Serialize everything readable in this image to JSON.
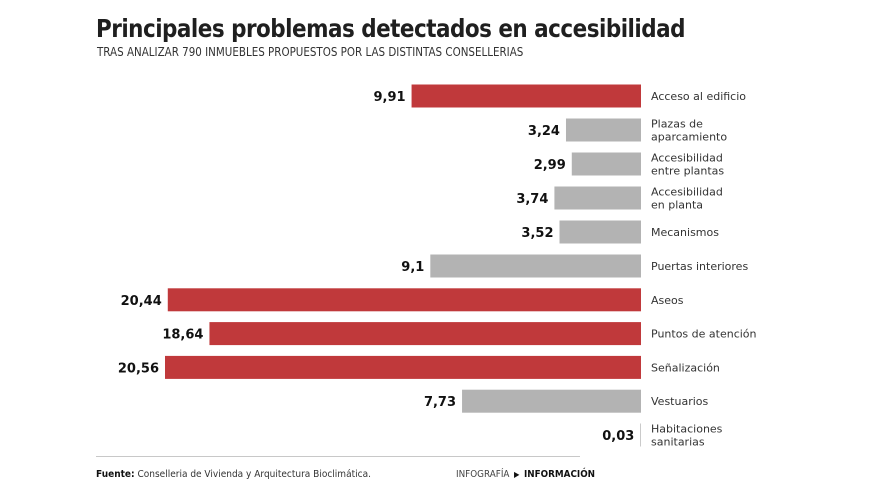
{
  "chart_data": {
    "type": "bar",
    "orientation": "horizontal",
    "title": "Principales problemas detectados en accesibilidad",
    "subtitle": "TRAS ANALIZAR 790 INMUEBLES PROPUESTOS POR LAS DISTINTAS CONSELLERIAS",
    "xlabel": "",
    "ylabel": "",
    "xlim": [
      0,
      20.56
    ],
    "grid": false,
    "legend": "none",
    "highlight_color": "#c0393b",
    "base_color": "#b3b3b3",
    "categories": [
      [
        "Acceso al edificio"
      ],
      [
        "Plazas de",
        "aparcamiento"
      ],
      [
        "Accesibilidad",
        "entre plantas"
      ],
      [
        "Accesibilidad",
        "en planta"
      ],
      [
        "Mecanismos"
      ],
      [
        "Puertas interiores"
      ],
      [
        "Aseos"
      ],
      [
        "Puntos de atención"
      ],
      [
        "Señalización"
      ],
      [
        "Vestuarios"
      ],
      [
        "Habitaciones",
        "sanitarias"
      ]
    ],
    "values": [
      9.91,
      3.24,
      2.99,
      3.74,
      3.52,
      9.1,
      20.44,
      18.64,
      20.56,
      7.73,
      0.03
    ],
    "value_labels": [
      "9,91",
      "3,24",
      "2,99",
      "3,74",
      "3,52",
      "9,1",
      "20,44",
      "18,64",
      "20,56",
      "7,73",
      "0,03"
    ],
    "highlighted": [
      true,
      false,
      false,
      false,
      false,
      false,
      true,
      true,
      true,
      false,
      false
    ]
  },
  "footer": {
    "source_label": "Fuente:",
    "source_text": " Conselleria de Vivienda y Arquitectura Bioclimática.",
    "credit_prefix": "INFOGRAFÍA",
    "credit_arrow": "▶",
    "credit_name": "INFORMACIÓN"
  }
}
